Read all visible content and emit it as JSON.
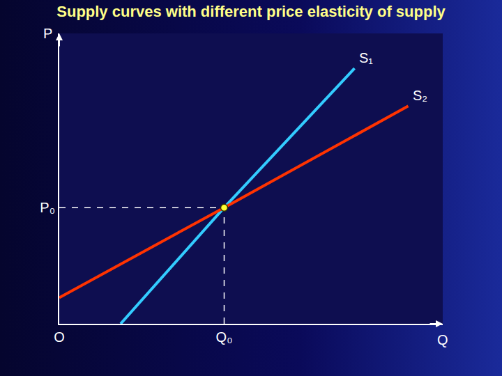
{
  "chart_data": {
    "type": "line",
    "title": "Supply curves with different price elasticity of supply",
    "x_label": "Q",
    "y_label": "P",
    "xlim": [
      0,
      100
    ],
    "ylim": [
      0,
      100
    ],
    "xticks": [
      {
        "value": 0,
        "label": "O"
      },
      {
        "value": 43,
        "label": "Q₀"
      }
    ],
    "yticks": [
      {
        "value": 40,
        "label": "P₀"
      }
    ],
    "grid": false,
    "series": [
      {
        "name": "S₁",
        "color": "#33ccff",
        "x": [
          16,
          43,
          77
        ],
        "values": [
          0,
          40,
          88
        ]
      },
      {
        "name": "S₂",
        "color": "#ff3300",
        "x": [
          0,
          43,
          91
        ],
        "values": [
          9,
          40,
          75
        ]
      }
    ],
    "equilibrium": {
      "x": 43,
      "y": 40
    }
  }
}
